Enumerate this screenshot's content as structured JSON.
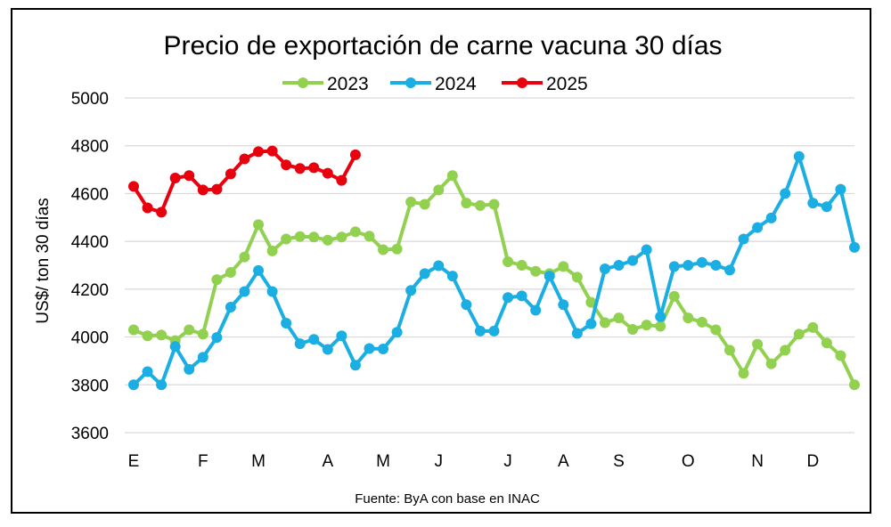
{
  "chart_data": {
    "type": "line",
    "title": "Precio de exportación de carne vacuna 30 días",
    "ylabel": "US$/ ton 30 días",
    "xlabel": "",
    "source": "Fuente: ByA con base en INAC",
    "ylim": [
      3600,
      5000
    ],
    "yticks": [
      3600,
      3800,
      4000,
      4200,
      4400,
      4600,
      4800,
      5000
    ],
    "grid": "horizontal",
    "legend_position": "top",
    "x_count": 53,
    "month_ticks": [
      {
        "label": "E",
        "index": 0
      },
      {
        "label": "F",
        "index": 5
      },
      {
        "label": "M",
        "index": 9
      },
      {
        "label": "A",
        "index": 14
      },
      {
        "label": "M",
        "index": 18
      },
      {
        "label": "J",
        "index": 22
      },
      {
        "label": "J",
        "index": 27
      },
      {
        "label": "A",
        "index": 31
      },
      {
        "label": "S",
        "index": 35
      },
      {
        "label": "O",
        "index": 40
      },
      {
        "label": "N",
        "index": 45
      },
      {
        "label": "D",
        "index": 49
      }
    ],
    "series": [
      {
        "name": "2023",
        "color": "#92d050",
        "values": [
          4030,
          4005,
          4008,
          3985,
          4030,
          4012,
          4240,
          4270,
          4335,
          4470,
          4360,
          4410,
          4420,
          4418,
          4405,
          4418,
          4440,
          4422,
          4365,
          4368,
          4565,
          4555,
          4615,
          4675,
          4560,
          4550,
          4555,
          4315,
          4300,
          4275,
          4265,
          4295,
          4250,
          4145,
          4060,
          4080,
          4032,
          4050,
          4045,
          4170,
          4080,
          4062,
          4030,
          3945,
          3848,
          3970,
          3888,
          3945,
          4012,
          4040,
          3975,
          3922,
          3800
        ]
      },
      {
        "name": "2024",
        "color": "#1aaee3",
        "values": [
          3800,
          3855,
          3800,
          3960,
          3865,
          3915,
          3998,
          4125,
          4190,
          4278,
          4190,
          4058,
          3972,
          3990,
          3948,
          4005,
          3882,
          3952,
          3950,
          4020,
          4195,
          4265,
          4298,
          4255,
          4135,
          4025,
          4025,
          4165,
          4172,
          4112,
          4255,
          4135,
          4015,
          4055,
          4285,
          4300,
          4320,
          4365,
          4085,
          4295,
          4300,
          4312,
          4300,
          4280,
          4410,
          4458,
          4498,
          4600,
          4755,
          4560,
          4545,
          4618,
          4375
        ]
      },
      {
        "name": "2025",
        "color": "#e8000e",
        "values": [
          4630,
          4540,
          4522,
          4665,
          4675,
          4615,
          4618,
          4682,
          4745,
          4775,
          4778,
          4720,
          4705,
          4708,
          4685,
          4655,
          4762
        ]
      }
    ]
  }
}
